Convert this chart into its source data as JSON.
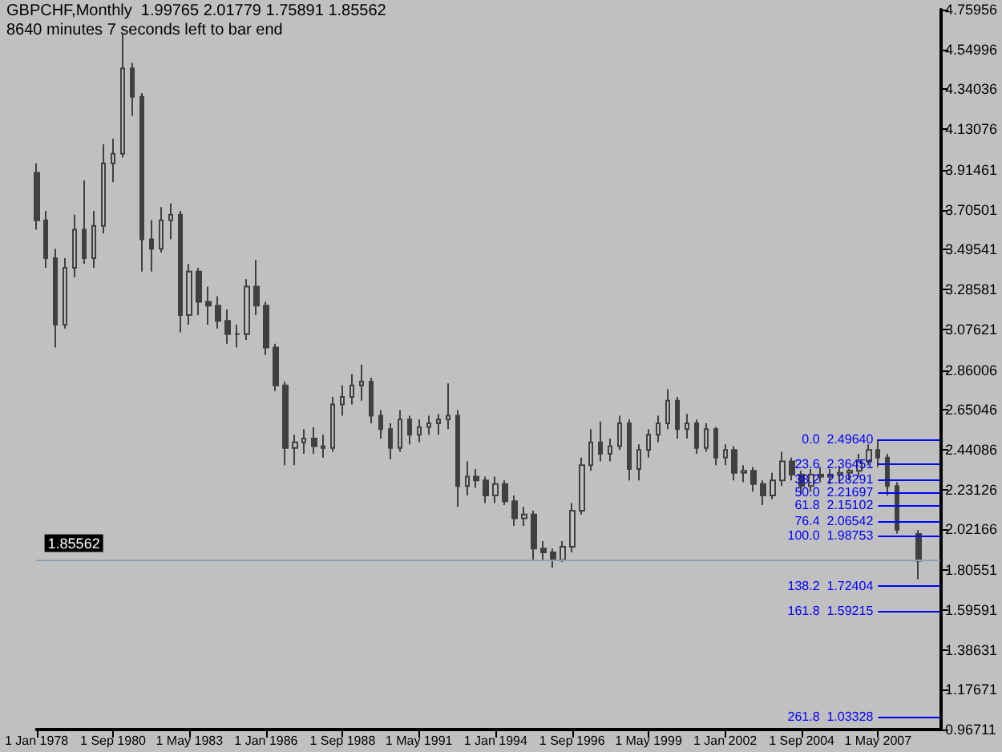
{
  "chart_data": {
    "type": "candlestick",
    "title": "GBPCHF,Monthly  1.99765 2.01779 1.75891 1.85562",
    "subtitle": "8640 minutes 7 seconds left to bar end",
    "color": "#404040",
    "x": [
      "1978-01",
      "1978-05",
      "1978-09",
      "1979-01",
      "1979-05",
      "1979-09",
      "1980-01",
      "1980-05",
      "1980-09",
      "1981-01",
      "1981-05",
      "1981-09",
      "1982-01",
      "1982-05",
      "1982-09",
      "1983-01",
      "1983-05",
      "1983-09",
      "1984-01",
      "1984-05",
      "1984-09",
      "1985-01",
      "1985-05",
      "1985-09",
      "1986-01",
      "1986-05",
      "1986-09",
      "1987-01",
      "1987-05",
      "1987-09",
      "1988-01",
      "1988-05",
      "1988-09",
      "1989-01",
      "1989-05",
      "1989-09",
      "1990-01",
      "1990-05",
      "1990-09",
      "1991-01",
      "1991-05",
      "1991-09",
      "1992-01",
      "1992-05",
      "1992-09",
      "1993-01",
      "1993-05",
      "1993-09",
      "1994-01",
      "1994-05",
      "1994-09",
      "1995-01",
      "1995-05",
      "1995-09",
      "1996-01",
      "1996-05",
      "1996-09",
      "1997-01",
      "1997-05",
      "1997-09",
      "1998-01",
      "1998-05",
      "1998-09",
      "1999-01",
      "1999-05",
      "1999-09",
      "2000-01",
      "2000-05",
      "2000-09",
      "2001-01",
      "2001-05",
      "2001-09",
      "2002-01",
      "2002-05",
      "2002-09",
      "2003-01",
      "2003-05",
      "2003-09",
      "2004-01",
      "2004-05",
      "2004-09",
      "2005-01",
      "2005-05",
      "2005-09",
      "2006-01",
      "2006-05",
      "2006-09",
      "2007-01",
      "2007-05",
      "2007-09",
      "2008-01",
      "2008-10"
    ],
    "ohlc": [
      [
        3.9,
        3.95,
        3.6,
        3.65
      ],
      [
        3.65,
        3.7,
        3.4,
        3.45
      ],
      [
        3.45,
        3.5,
        2.98,
        3.1
      ],
      [
        3.1,
        3.45,
        3.08,
        3.4
      ],
      [
        3.4,
        3.68,
        3.35,
        3.6
      ],
      [
        3.6,
        3.86,
        3.42,
        3.45
      ],
      [
        3.45,
        3.7,
        3.4,
        3.62
      ],
      [
        3.62,
        4.05,
        3.58,
        3.95
      ],
      [
        3.95,
        4.08,
        3.85,
        4.0
      ],
      [
        4.0,
        4.63,
        3.98,
        4.45
      ],
      [
        4.45,
        4.48,
        4.2,
        4.3
      ],
      [
        4.3,
        4.32,
        3.38,
        3.55
      ],
      [
        3.55,
        3.65,
        3.38,
        3.5
      ],
      [
        3.5,
        3.72,
        3.48,
        3.65
      ],
      [
        3.65,
        3.74,
        3.55,
        3.68
      ],
      [
        3.68,
        3.7,
        3.06,
        3.15
      ],
      [
        3.15,
        3.42,
        3.1,
        3.38
      ],
      [
        3.38,
        3.4,
        3.15,
        3.22
      ],
      [
        3.22,
        3.3,
        3.1,
        3.2
      ],
      [
        3.2,
        3.25,
        3.08,
        3.12
      ],
      [
        3.12,
        3.18,
        3.0,
        3.05
      ],
      [
        3.05,
        3.1,
        2.98,
        3.05
      ],
      [
        3.05,
        3.34,
        3.02,
        3.3
      ],
      [
        3.3,
        3.44,
        3.15,
        3.2
      ],
      [
        3.2,
        3.22,
        2.94,
        2.98
      ],
      [
        2.98,
        3.0,
        2.75,
        2.78
      ],
      [
        2.78,
        2.8,
        2.36,
        2.45
      ],
      [
        2.45,
        2.52,
        2.36,
        2.48
      ],
      [
        2.48,
        2.55,
        2.42,
        2.5
      ],
      [
        2.5,
        2.56,
        2.42,
        2.46
      ],
      [
        2.46,
        2.52,
        2.4,
        2.45
      ],
      [
        2.45,
        2.72,
        2.43,
        2.68
      ],
      [
        2.68,
        2.78,
        2.62,
        2.72
      ],
      [
        2.72,
        2.84,
        2.68,
        2.78
      ],
      [
        2.78,
        2.89,
        2.7,
        2.8
      ],
      [
        2.8,
        2.82,
        2.58,
        2.62
      ],
      [
        2.62,
        2.65,
        2.5,
        2.55
      ],
      [
        2.55,
        2.58,
        2.39,
        2.45
      ],
      [
        2.45,
        2.65,
        2.43,
        2.6
      ],
      [
        2.6,
        2.62,
        2.47,
        2.52
      ],
      [
        2.52,
        2.6,
        2.48,
        2.56
      ],
      [
        2.56,
        2.62,
        2.52,
        2.58
      ],
      [
        2.58,
        2.63,
        2.52,
        2.6
      ],
      [
        2.6,
        2.79,
        2.55,
        2.62
      ],
      [
        2.62,
        2.65,
        2.14,
        2.25
      ],
      [
        2.25,
        2.38,
        2.2,
        2.3
      ],
      [
        2.3,
        2.34,
        2.24,
        2.28
      ],
      [
        2.28,
        2.3,
        2.16,
        2.2
      ],
      [
        2.2,
        2.3,
        2.16,
        2.26
      ],
      [
        2.26,
        2.28,
        2.15,
        2.17
      ],
      [
        2.17,
        2.2,
        2.04,
        2.08
      ],
      [
        2.08,
        2.14,
        2.04,
        2.1
      ],
      [
        2.1,
        2.12,
        1.86,
        1.92
      ],
      [
        1.92,
        1.96,
        1.86,
        1.9
      ],
      [
        1.9,
        1.92,
        1.82,
        1.86
      ],
      [
        1.86,
        1.96,
        1.85,
        1.93
      ],
      [
        1.93,
        2.16,
        1.9,
        2.12
      ],
      [
        2.12,
        2.4,
        2.1,
        2.36
      ],
      [
        2.36,
        2.55,
        2.33,
        2.48
      ],
      [
        2.48,
        2.59,
        2.38,
        2.42
      ],
      [
        2.42,
        2.5,
        2.38,
        2.46
      ],
      [
        2.46,
        2.62,
        2.44,
        2.58
      ],
      [
        2.58,
        2.6,
        2.28,
        2.34
      ],
      [
        2.34,
        2.47,
        2.28,
        2.44
      ],
      [
        2.44,
        2.55,
        2.4,
        2.52
      ],
      [
        2.52,
        2.62,
        2.48,
        2.58
      ],
      [
        2.58,
        2.76,
        2.55,
        2.7
      ],
      [
        2.7,
        2.72,
        2.5,
        2.55
      ],
      [
        2.55,
        2.63,
        2.5,
        2.58
      ],
      [
        2.58,
        2.6,
        2.42,
        2.45
      ],
      [
        2.45,
        2.58,
        2.43,
        2.55
      ],
      [
        2.55,
        2.56,
        2.36,
        2.4
      ],
      [
        2.4,
        2.47,
        2.36,
        2.44
      ],
      [
        2.44,
        2.46,
        2.28,
        2.32
      ],
      [
        2.32,
        2.36,
        2.27,
        2.33
      ],
      [
        2.33,
        2.35,
        2.22,
        2.26
      ],
      [
        2.26,
        2.28,
        2.15,
        2.2
      ],
      [
        2.2,
        2.32,
        2.18,
        2.28
      ],
      [
        2.28,
        2.43,
        2.25,
        2.38
      ],
      [
        2.38,
        2.4,
        2.28,
        2.31
      ],
      [
        2.31,
        2.33,
        2.21,
        2.25
      ],
      [
        2.25,
        2.34,
        2.22,
        2.31
      ],
      [
        2.31,
        2.35,
        2.27,
        2.3
      ],
      [
        2.3,
        2.34,
        2.26,
        2.31
      ],
      [
        2.31,
        2.35,
        2.27,
        2.32
      ],
      [
        2.32,
        2.34,
        2.28,
        2.33
      ],
      [
        2.33,
        2.42,
        2.3,
        2.38
      ],
      [
        2.38,
        2.47,
        2.36,
        2.44
      ],
      [
        2.44,
        2.4964,
        2.35,
        2.4
      ],
      [
        2.4,
        2.42,
        2.2,
        2.25
      ],
      [
        2.25,
        2.27,
        2.0,
        2.02
      ],
      [
        1.99765,
        2.01779,
        1.75891,
        1.85562
      ]
    ],
    "xlim": [
      "1978-01",
      "2009-07"
    ],
    "xticks": [
      {
        "value": "1978-01",
        "label": "1 Jan 1978"
      },
      {
        "value": "1980-09",
        "label": "1 Sep 1980"
      },
      {
        "value": "1983-05",
        "label": "1 May 1983"
      },
      {
        "value": "1986-01",
        "label": "1 Jan 1986"
      },
      {
        "value": "1988-09",
        "label": "1 Sep 1988"
      },
      {
        "value": "1991-05",
        "label": "1 May 1991"
      },
      {
        "value": "1994-01",
        "label": "1 Jan 1994"
      },
      {
        "value": "1996-09",
        "label": "1 Sep 1996"
      },
      {
        "value": "1999-05",
        "label": "1 May 1999"
      },
      {
        "value": "2002-01",
        "label": "1 Jan 2002"
      },
      {
        "value": "2004-09",
        "label": "1 Sep 2004"
      },
      {
        "value": "2007-05",
        "label": "1 May 2007"
      }
    ],
    "ylim": [
      0.96711,
      4.75956
    ],
    "yticks": [
      0.96711,
      1.17671,
      1.38631,
      1.59591,
      1.80551,
      2.02166,
      2.23126,
      2.44086,
      2.65046,
      2.86006,
      3.07621,
      3.28581,
      3.49541,
      3.70501,
      3.91461,
      4.13076,
      4.34036,
      4.54996,
      4.75956
    ],
    "ref_lines": [
      {
        "axis": "y",
        "value": 1.85562,
        "label": "1.85562",
        "color": "#8fa0b4"
      },
      {
        "axis": "y",
        "value": 2.4964,
        "label": "0.0  2.49640",
        "color": "#0000ff"
      },
      {
        "axis": "y",
        "value": 2.36451,
        "label": "23.6  2.36451",
        "color": "#0000ff"
      },
      {
        "axis": "y",
        "value": 2.28291,
        "label": "38.2  2.28291",
        "color": "#0000ff"
      },
      {
        "axis": "y",
        "value": 2.21697,
        "label": "50.0  2.21697",
        "color": "#0000ff"
      },
      {
        "axis": "y",
        "value": 2.15102,
        "label": "61.8  2.15102",
        "color": "#0000ff"
      },
      {
        "axis": "y",
        "value": 2.06542,
        "label": "76.4  2.06542",
        "color": "#0000ff"
      },
      {
        "axis": "y",
        "value": 1.98753,
        "label": "100.0  1.98753",
        "color": "#0000ff"
      },
      {
        "axis": "y",
        "value": 1.72404,
        "label": "138.2  1.72404",
        "color": "#0000ff"
      },
      {
        "axis": "y",
        "value": 1.59215,
        "label": "161.8  1.59215",
        "color": "#0000ff"
      },
      {
        "axis": "y",
        "value": 1.03328,
        "label": "261.8  1.03328",
        "color": "#0000ff"
      }
    ]
  }
}
